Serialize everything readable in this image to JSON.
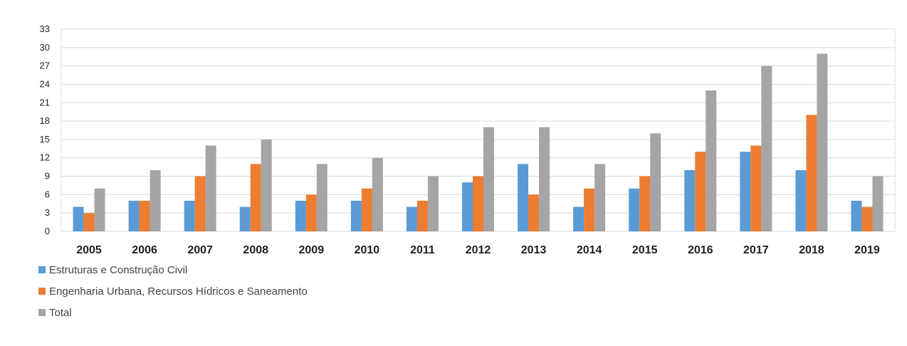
{
  "chart_data": {
    "type": "bar",
    "categories": [
      "2005",
      "2006",
      "2007",
      "2008",
      "2009",
      "2010",
      "2011",
      "2012",
      "2013",
      "2014",
      "2015",
      "2016",
      "2017",
      "2018",
      "2019"
    ],
    "series": [
      {
        "name": "Estruturas e Construção Civil",
        "color": "#5B9BD5",
        "values": [
          4,
          5,
          5,
          4,
          5,
          5,
          4,
          8,
          11,
          4,
          7,
          10,
          13,
          10,
          5
        ]
      },
      {
        "name": "Engenharia Urbana, Recursos Hídricos e Saneamento",
        "color": "#ED7D31",
        "values": [
          3,
          5,
          9,
          11,
          6,
          7,
          5,
          9,
          6,
          7,
          9,
          13,
          14,
          19,
          4
        ]
      },
      {
        "name": "Total",
        "color": "#A5A5A5",
        "values": [
          7,
          10,
          14,
          15,
          11,
          12,
          9,
          17,
          17,
          11,
          16,
          23,
          27,
          29,
          9
        ]
      }
    ],
    "yticks": [
      "0",
      "3",
      "6",
      "9",
      "12",
      "15",
      "18",
      "21",
      "24",
      "27",
      "30",
      "33"
    ],
    "ylim": [
      0,
      33
    ],
    "grid": true,
    "legend_position": "bottom-left",
    "title": "",
    "xlabel": "",
    "ylabel": ""
  }
}
